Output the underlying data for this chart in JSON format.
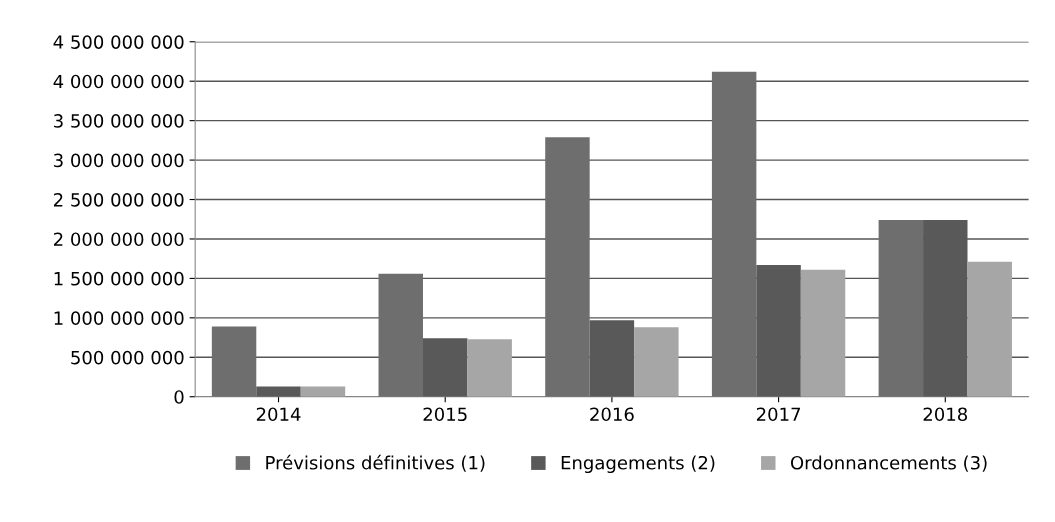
{
  "chart_data": {
    "type": "bar",
    "categories": [
      "2014",
      "2015",
      "2016",
      "2017",
      "2018"
    ],
    "series": [
      {
        "name": "Prévisions définitives (1)",
        "color": "#6e6e6e",
        "values": [
          890000000,
          1560000000,
          3290000000,
          4120000000,
          2240000000
        ]
      },
      {
        "name": "Engagements (2)",
        "color": "#595959",
        "values": [
          130000000,
          740000000,
          970000000,
          1670000000,
          2240000000
        ]
      },
      {
        "name": "Ordonnancements (3)",
        "color": "#a6a6a6",
        "values": [
          130000000,
          730000000,
          880000000,
          1610000000,
          1710000000
        ]
      }
    ],
    "ylim": [
      0,
      4500000000
    ],
    "yticks": [
      0,
      {
        "value": 500000000,
        "label": "500 000 000"
      },
      {
        "value": 1000000000,
        "label": "1 000 000 000"
      },
      {
        "value": 1500000000,
        "label": "1 500 000 000"
      },
      {
        "value": 2000000000,
        "label": "2 000 000 000"
      },
      {
        "value": 2500000000,
        "label": "2 500 000 000"
      },
      {
        "value": 3000000000,
        "label": "3 000 000 000"
      },
      {
        "value": 3500000000,
        "label": "3 500 000 000"
      },
      {
        "value": 4000000000,
        "label": "4 000 000 000"
      },
      {
        "value": 4500000000,
        "label": "4 500 000 000"
      }
    ],
    "grid": "y",
    "legend": "bottom"
  }
}
